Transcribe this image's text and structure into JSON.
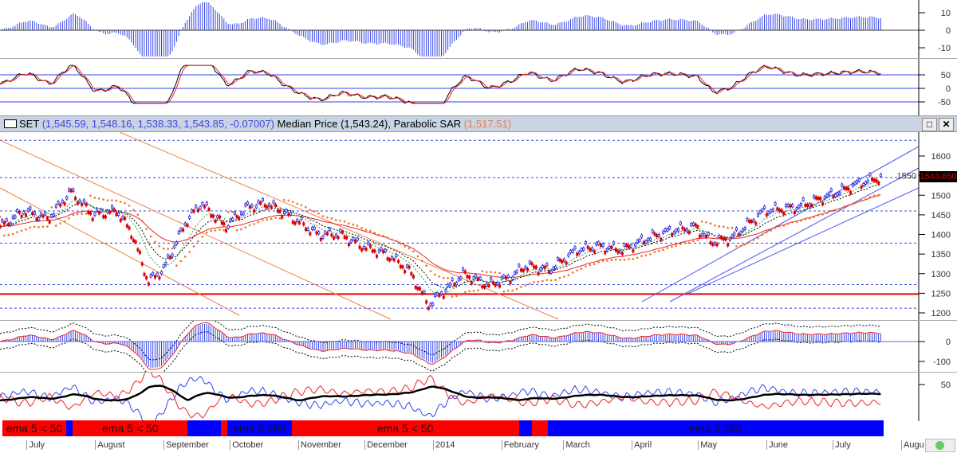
{
  "header": {
    "symbol": "SET",
    "ohlc": "(1,545.59, 1,548.16, 1,538.33, 1,543.85, -0.07007)",
    "median_label": "Median Price (1,543.24),",
    "sar_label": "Parabolic SAR",
    "sar_value": "(1,517.51)",
    "maximize_icon": "maximize-icon",
    "close_icon": "close-icon"
  },
  "last_price": "1543.850",
  "colors": {
    "up": "#2222dd",
    "down": "#dd0000",
    "sar": "#f07020",
    "regime_red": "#ff0000",
    "regime_blue": "#0000ff"
  },
  "chart_data": [
    {
      "type": "line",
      "panel": "price",
      "xaxis": "date",
      "ylim": [
        1190,
        1660
      ],
      "yticks": [
        1200,
        1250,
        1300,
        1350,
        1400,
        1450,
        1500,
        1550,
        1600
      ],
      "x": [
        "2013-06-20",
        "2013-07-01",
        "2013-07-12",
        "2013-07-22",
        "2013-08-01",
        "2013-08-12",
        "2013-08-19",
        "2013-08-26",
        "2013-09-02",
        "2013-09-12",
        "2013-09-19",
        "2013-09-30",
        "2013-10-10",
        "2013-10-19",
        "2013-10-31",
        "2013-11-11",
        "2013-11-21",
        "2013-12-01",
        "2013-12-12",
        "2013-12-22",
        "2013-12-31",
        "2014-01-06",
        "2014-01-16",
        "2014-01-27",
        "2014-02-06",
        "2014-02-13",
        "2014-02-24",
        "2014-03-08",
        "2014-03-18",
        "2014-03-29",
        "2014-04-09",
        "2014-04-20",
        "2014-05-01",
        "2014-05-08",
        "2014-05-17",
        "2014-06-01",
        "2014-06-16",
        "2014-07-01",
        "2014-07-14",
        "2014-07-23"
      ],
      "close": [
        1420,
        1460,
        1440,
        1510,
        1450,
        1460,
        1400,
        1280,
        1310,
        1430,
        1480,
        1420,
        1470,
        1480,
        1440,
        1400,
        1400,
        1370,
        1350,
        1310,
        1220,
        1250,
        1300,
        1270,
        1290,
        1320,
        1310,
        1360,
        1370,
        1360,
        1390,
        1410,
        1420,
        1380,
        1390,
        1460,
        1470,
        1500,
        1530,
        1543.85
      ],
      "hlines_dashed": [
        1640,
        1545,
        1460,
        1378,
        1272,
        1212
      ],
      "hline_red": 1248
    },
    {
      "type": "bar",
      "panel": "top-oscillator",
      "ylim": [
        -15,
        17
      ],
      "yticks": [
        10,
        0,
        -10
      ]
    },
    {
      "type": "line",
      "panel": "stochastic",
      "ylim": [
        -65,
        90
      ],
      "yticks": [
        50,
        0,
        -50
      ]
    },
    {
      "type": "bar",
      "panel": "macd",
      "ylim": [
        -160,
        90
      ],
      "yticks": [
        0,
        -100
      ]
    },
    {
      "type": "line",
      "panel": "dmi",
      "yticks": [
        50
      ]
    }
  ],
  "regimes": [
    {
      "label": "ema 5 < 50",
      "color": "red",
      "from": "2013-06-20",
      "to": "2013-07-20"
    },
    {
      "label": "",
      "color": "blue",
      "from": "2013-07-20",
      "to": "2013-07-23"
    },
    {
      "label": "ema 5 < 50",
      "color": "red",
      "from": "2013-07-23",
      "to": "2013-09-13"
    },
    {
      "label": "",
      "color": "blue",
      "from": "2013-09-13",
      "to": "2013-09-28"
    },
    {
      "label": "",
      "color": "red",
      "from": "2013-09-28",
      "to": "2013-10-01"
    },
    {
      "label": "ema 5 >50",
      "color": "blue",
      "from": "2013-10-01",
      "to": "2013-10-30"
    },
    {
      "label": "ema 5 < 50",
      "color": "red",
      "from": "2013-10-30",
      "to": "2014-02-10"
    },
    {
      "label": "",
      "color": "blue",
      "from": "2014-02-10",
      "to": "2014-02-16"
    },
    {
      "label": "",
      "color": "red",
      "from": "2014-02-16",
      "to": "2014-02-23"
    },
    {
      "label": "ema 5 >50",
      "color": "blue",
      "from": "2014-02-23",
      "to": "2014-07-25"
    }
  ],
  "months": [
    {
      "label": "July",
      "date": "2013-07-01"
    },
    {
      "label": "August",
      "date": "2013-08-01"
    },
    {
      "label": "September",
      "date": "2013-09-01"
    },
    {
      "label": "October",
      "date": "2013-10-01"
    },
    {
      "label": "November",
      "date": "2013-11-01"
    },
    {
      "label": "December",
      "date": "2013-12-01"
    },
    {
      "label": "2014",
      "date": "2014-01-01"
    },
    {
      "label": "February",
      "date": "2014-02-01"
    },
    {
      "label": "March",
      "date": "2014-03-01"
    },
    {
      "label": "April",
      "date": "2014-04-01"
    },
    {
      "label": "May",
      "date": "2014-05-01"
    },
    {
      "label": "June",
      "date": "2014-06-01"
    },
    {
      "label": "July",
      "date": "2014-07-01"
    },
    {
      "label": "Augu",
      "date": "2014-08-01"
    }
  ]
}
